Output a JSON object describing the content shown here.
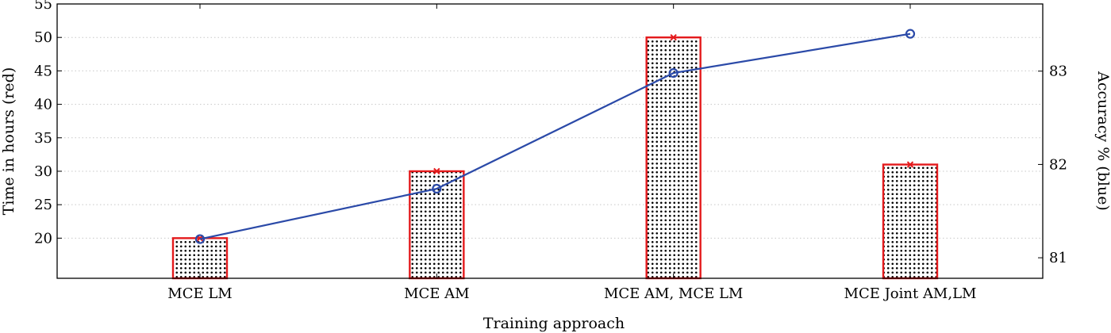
{
  "chart_data": {
    "type": "bar",
    "categories": [
      "MCE LM",
      "MCE AM",
      "MCE AM, MCE LM",
      "MCE Joint AM,LM"
    ],
    "xlabel": "Training approach",
    "ylabel_left": "Time in hours (red)",
    "ylabel_right": "Accuracy % (blue)",
    "left_axis": {
      "range": [
        14,
        55
      ],
      "ticks": [
        20,
        25,
        30,
        35,
        40,
        45,
        50,
        55
      ]
    },
    "right_axis": {
      "range": [
        80.78,
        83.72
      ],
      "ticks": [
        81,
        82,
        83
      ]
    },
    "grid": "horizontal dotted",
    "series": [
      {
        "name": "Time in hours",
        "kind": "bar",
        "axis": "left",
        "color": "#e41a1c",
        "marker": "x",
        "values": [
          20,
          30,
          50,
          31
        ]
      },
      {
        "name": "Accuracy %",
        "kind": "line",
        "axis": "right",
        "color": "#2b4aa8",
        "marker": "o",
        "values": [
          81.2,
          81.74,
          82.98,
          83.4
        ]
      }
    ]
  }
}
